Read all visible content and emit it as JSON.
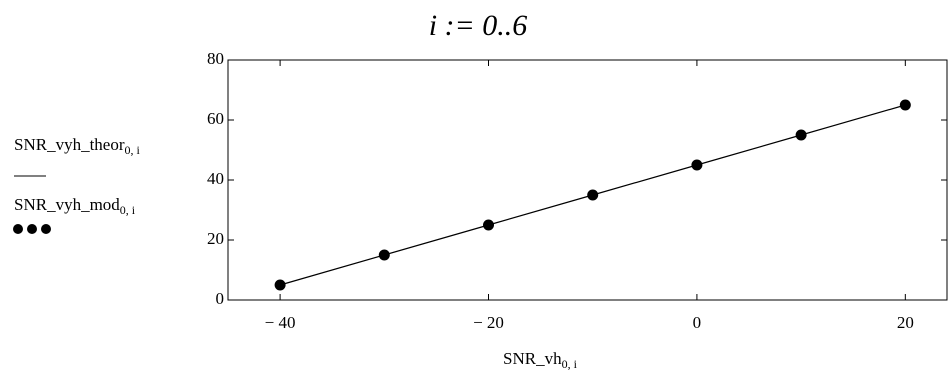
{
  "chart_data": {
    "type": "line",
    "title": "i := 0..6",
    "x_label": {
      "text": "SNR_vh",
      "subscript": "0, i"
    },
    "x": [
      -40,
      -30,
      -20,
      -10,
      0,
      10,
      20
    ],
    "series": [
      {
        "name": "SNR_vyh_theor",
        "subscript": "0, i",
        "color": "#000000",
        "style": "line",
        "values": [
          5,
          15,
          25,
          35,
          45,
          55,
          65
        ]
      },
      {
        "name": "SNR_vyh_mod",
        "subscript": "0, i",
        "color": "#000000",
        "style": "markers",
        "values": [
          5,
          15,
          25,
          35,
          45,
          55,
          65
        ]
      }
    ],
    "xlim": [
      -45,
      24
    ],
    "ylim": [
      0,
      80
    ],
    "xticks": [
      {
        "value": -40,
        "label": "− 40"
      },
      {
        "value": -20,
        "label": "− 20"
      },
      0,
      20
    ],
    "yticks": [
      0,
      20,
      40,
      60,
      80
    ]
  }
}
